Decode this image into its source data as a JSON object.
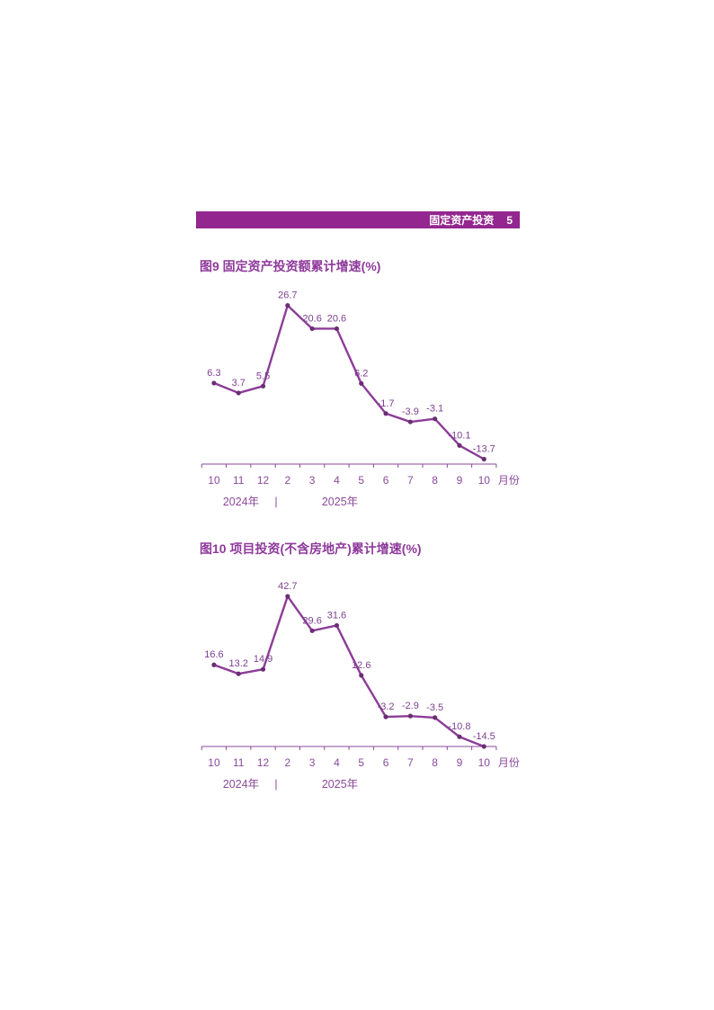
{
  "page": {
    "header": {
      "section_title": "固定资产投资",
      "page_number": "5"
    }
  },
  "colors": {
    "accent_bar": "#93278F",
    "header_text": "#FFFFFF",
    "title_text": "#8E3A9B",
    "line": "#8C3D97",
    "marker": "#6B2D74",
    "data_label": "#7D4090",
    "axis": "#8B4A9B"
  },
  "chart_data": [
    {
      "type": "line",
      "title": "图9  固定资产投资额累计增速(%)",
      "categories": [
        "10",
        "11",
        "12",
        "2",
        "3",
        "4",
        "5",
        "6",
        "7",
        "8",
        "9",
        "10"
      ],
      "values": [
        6.3,
        3.7,
        5.5,
        26.7,
        20.6,
        20.6,
        6.2,
        -1.7,
        -3.9,
        -3.1,
        -10.1,
        -13.7
      ],
      "data_labels": [
        "6.3",
        "3.7",
        "5.5",
        "26.7",
        "20.6",
        "20.6",
        "6.2",
        "-1.7",
        "-3.9",
        "-3.1",
        "-10.1",
        "-13.7"
      ],
      "x_suffix": "月份",
      "year_labels": [
        "2024年",
        "2025年"
      ],
      "year_separator": "|",
      "ylim": [
        -15,
        33
      ],
      "grid": false,
      "legend": "none"
    },
    {
      "type": "line",
      "title": "图10  项目投资(不含房地产)累计增速(%)",
      "categories": [
        "10",
        "11",
        "12",
        "2",
        "3",
        "4",
        "5",
        "6",
        "7",
        "8",
        "9",
        "10"
      ],
      "values": [
        16.6,
        13.2,
        14.9,
        42.7,
        29.6,
        31.6,
        12.6,
        -3.2,
        -2.9,
        -3.5,
        -10.8,
        -14.5
      ],
      "data_labels": [
        "16.6",
        "13.2",
        "14.9",
        "42.7",
        "29.6",
        "31.6",
        "12.6",
        "-3.2",
        "-2.9",
        "-3.5",
        "-10.8",
        "-14.5"
      ],
      "x_suffix": "月份",
      "year_labels": [
        "2024年",
        "2025年"
      ],
      "year_separator": "|",
      "ylim": [
        -14.5,
        53
      ],
      "grid": false,
      "legend": "none"
    }
  ]
}
